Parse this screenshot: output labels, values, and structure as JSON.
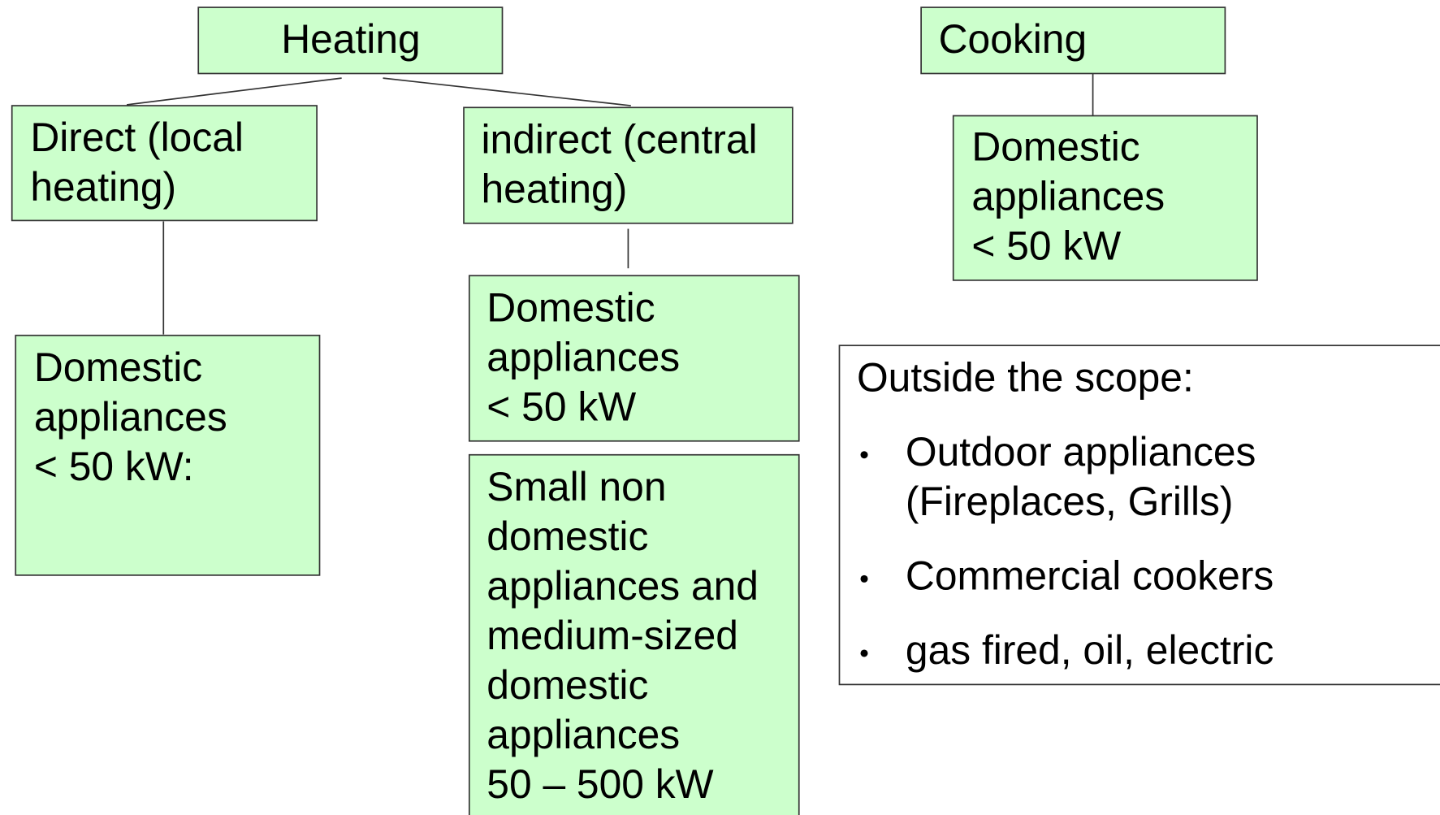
{
  "nodes": [
    {
      "lines": [
        "Heating"
      ]
    },
    {
      "lines": [
        "Cooking"
      ]
    },
    {
      "lines": [
        "Direct (local",
        "heating)"
      ]
    },
    {
      "lines": [
        "indirect (central",
        "heating)"
      ]
    },
    {
      "lines": [
        "Domestic",
        "appliances",
        "< 50 kW"
      ]
    },
    {
      "lines": [
        "Domestic",
        "appliances",
        "< 50 kW:"
      ]
    },
    {
      "lines": [
        "Domestic",
        "appliances",
        "< 50 kW"
      ]
    },
    {
      "lines": [
        "Small non",
        "domestic",
        "appliances and",
        "medium-sized",
        "domestic",
        "appliances",
        "50 – 500 kW"
      ]
    }
  ],
  "scope": {
    "title": "Outside the scope:",
    "bullets": [
      {
        "lines": [
          "Outdoor appliances",
          "(Fireplaces, Grills)"
        ]
      },
      {
        "lines": [
          "Commercial cookers"
        ]
      },
      {
        "lines": [
          "gas fired, oil, electric"
        ]
      }
    ]
  }
}
